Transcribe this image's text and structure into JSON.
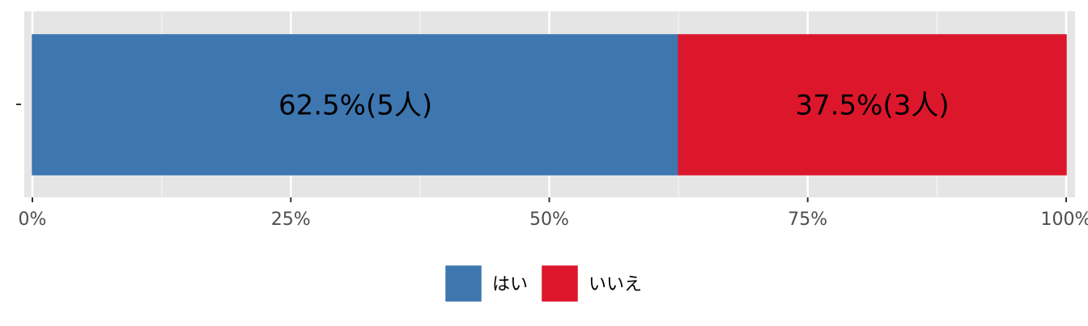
{
  "chart_data": {
    "type": "bar",
    "orientation": "horizontal",
    "stacked": true,
    "percent": true,
    "categories": [
      ""
    ],
    "series": [
      {
        "name": "はい",
        "values": [
          62.5
        ],
        "count": 5,
        "label": "62.5%(5人)",
        "color": "#3E76B0"
      },
      {
        "name": "いいえ",
        "values": [
          37.5
        ],
        "count": 3,
        "label": "37.5%(3人)",
        "color": "#DC172C"
      }
    ],
    "x_ticks": [
      "0%",
      "25%",
      "50%",
      "75%",
      "100%"
    ],
    "x_tick_values": [
      0,
      25,
      50,
      75,
      100
    ],
    "xlim": [
      0,
      100
    ],
    "grid": true,
    "legend_position": "bottom",
    "panel_background": "#E5E5E5"
  }
}
